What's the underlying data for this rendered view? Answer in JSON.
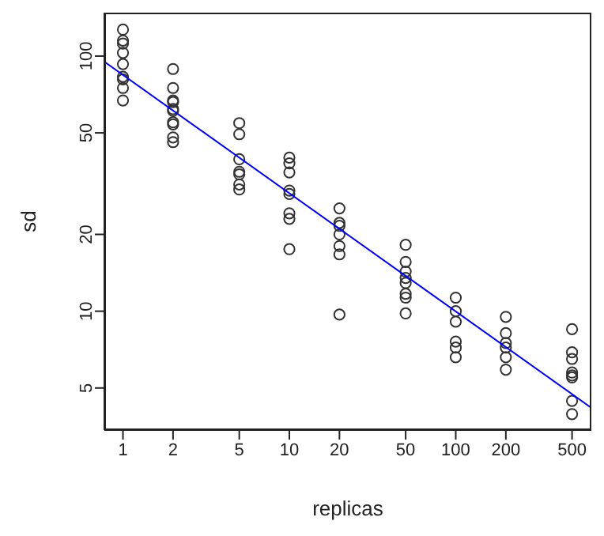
{
  "chart_data": {
    "type": "scatter",
    "xlabel": "replicas",
    "ylabel": "sd",
    "log": "xy",
    "xlim": [
      0.773,
      653
    ],
    "ylim": [
      3.42,
      148
    ],
    "xticks": [
      1,
      2,
      5,
      10,
      20,
      50,
      100,
      200,
      500
    ],
    "yticks": [
      5,
      10,
      20,
      50,
      100
    ],
    "series": [
      {
        "marker": "circle",
        "color": "#333333",
        "x": [
          1,
          1,
          1,
          1,
          1,
          1,
          1,
          1,
          1,
          2,
          2,
          2,
          2,
          2,
          2,
          2,
          2,
          2,
          2,
          5,
          5,
          5,
          5,
          5,
          5,
          5,
          10,
          10,
          10,
          10,
          10,
          10,
          10,
          10,
          20,
          20,
          20,
          20,
          20,
          20,
          20,
          50,
          50,
          50,
          50,
          50,
          50,
          50,
          50,
          100,
          100,
          100,
          100,
          100,
          100,
          200,
          200,
          200,
          200,
          200,
          200,
          500,
          500,
          500,
          500,
          500,
          500,
          500,
          500
        ],
        "values": [
          127,
          115,
          112,
          103,
          93,
          83,
          81,
          75,
          67,
          89,
          75,
          67,
          66,
          62,
          61,
          55,
          54,
          48,
          46,
          54.6,
          49.4,
          39.4,
          35.2,
          34.4,
          31.4,
          30,
          40,
          38,
          35,
          29.7,
          28.8,
          24.2,
          23,
          17.5,
          25.3,
          22.2,
          21.6,
          20,
          18,
          16.7,
          9.7,
          18.2,
          15.6,
          14.3,
          13.5,
          12.9,
          11.7,
          11.3,
          9.8,
          11.3,
          10,
          9.1,
          7.6,
          7.2,
          6.6,
          9.5,
          8.2,
          7.5,
          7.2,
          6.6,
          5.9,
          8.5,
          6.9,
          6.5,
          5.75,
          5.6,
          5.5,
          4.45,
          3.95
        ]
      },
      {
        "type": "line",
        "marker": "none",
        "color": "#0000ff",
        "line_style": "solid",
        "x": [
          0.773,
          653
        ],
        "values": [
          95,
          4.18
        ]
      }
    ]
  }
}
